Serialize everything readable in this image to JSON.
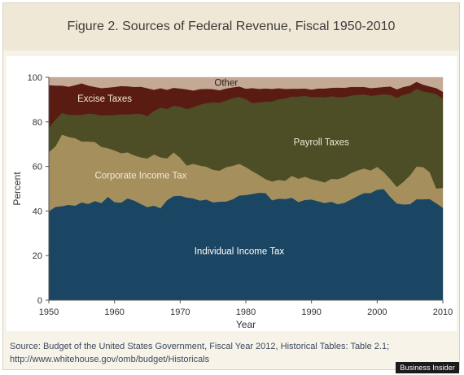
{
  "title": "Figure 2. Sources of Federal Revenue, Fiscal 1950-2010",
  "source_lines": [
    "Source: Budget of the United States Government, Fiscal Year 2012, Historical Tables: Table 2.1;",
    "http://www.whitehouse.gov/omb/budget/Historicals"
  ],
  "watermark": "Business Insider",
  "chart_data": {
    "type": "area",
    "stacked": true,
    "xlabel": "Year",
    "ylabel": "Percent",
    "xlim": [
      1950,
      2010
    ],
    "ylim": [
      0,
      100
    ],
    "xticks": [
      1950,
      1960,
      1970,
      1980,
      1990,
      2000,
      2010
    ],
    "yticks": [
      0,
      20,
      40,
      60,
      80,
      100
    ],
    "grid": "horizontal",
    "legend": "inline labels",
    "x": [
      1950,
      1951,
      1952,
      1953,
      1954,
      1955,
      1956,
      1957,
      1958,
      1959,
      1960,
      1961,
      1962,
      1963,
      1964,
      1965,
      1966,
      1967,
      1968,
      1969,
      1970,
      1971,
      1972,
      1973,
      1974,
      1975,
      1976,
      1977,
      1978,
      1979,
      1980,
      1981,
      1982,
      1983,
      1984,
      1985,
      1986,
      1987,
      1988,
      1989,
      1990,
      1991,
      1992,
      1993,
      1994,
      1995,
      1996,
      1997,
      1998,
      1999,
      2000,
      2001,
      2002,
      2003,
      2004,
      2005,
      2006,
      2007,
      2008,
      2009,
      2010
    ],
    "series": [
      {
        "name": "Individual Income Tax",
        "color": "#1b4663",
        "values": [
          39.9,
          41.9,
          42.2,
          42.8,
          42.4,
          43.9,
          43.2,
          44.5,
          43.6,
          46.4,
          44.0,
          43.8,
          45.7,
          44.7,
          43.2,
          41.8,
          42.4,
          41.3,
          44.9,
          46.7,
          46.9,
          46.1,
          45.7,
          44.7,
          45.2,
          43.9,
          44.2,
          44.3,
          45.3,
          47.0,
          47.2,
          47.7,
          48.2,
          48.1,
          44.8,
          45.6,
          45.4,
          46.0,
          44.1,
          45.0,
          45.2,
          44.4,
          43.6,
          44.2,
          43.1,
          43.7,
          45.2,
          46.7,
          48.1,
          48.1,
          49.6,
          49.9,
          46.3,
          43.4,
          43.0,
          43.1,
          45.3,
          45.3,
          45.4,
          43.5,
          41.5
        ]
      },
      {
        "name": "Corporate Income Tax",
        "color": "#a58f5c",
        "values": [
          26.5,
          27.1,
          32.1,
          30.5,
          30.3,
          27.3,
          28.0,
          26.5,
          25.2,
          21.8,
          23.2,
          22.2,
          20.6,
          20.3,
          20.9,
          21.8,
          23.0,
          22.8,
          18.7,
          19.6,
          17.0,
          14.3,
          15.5,
          15.7,
          14.7,
          14.6,
          13.9,
          15.4,
          15.0,
          14.2,
          12.5,
          10.2,
          8.0,
          6.2,
          8.5,
          8.4,
          8.2,
          9.8,
          10.4,
          10.4,
          9.1,
          9.3,
          9.2,
          10.2,
          11.2,
          11.6,
          11.8,
          11.5,
          11.0,
          10.1,
          10.2,
          7.6,
          8.0,
          7.4,
          10.1,
          12.9,
          14.7,
          14.4,
          12.1,
          6.6,
          8.9
        ]
      },
      {
        "name": "Payroll Taxes",
        "color": "#4d4d26",
        "values": [
          11.0,
          12.0,
          9.7,
          9.9,
          10.4,
          12.0,
          12.5,
          12.5,
          14.1,
          14.8,
          15.9,
          17.4,
          17.1,
          18.6,
          19.5,
          19.0,
          19.5,
          22.3,
          22.2,
          20.9,
          23.0,
          25.3,
          25.4,
          27.3,
          28.5,
          30.3,
          30.5,
          29.9,
          30.3,
          30.0,
          30.5,
          30.5,
          32.6,
          34.8,
          35.9,
          36.1,
          36.9,
          35.5,
          36.8,
          36.3,
          36.8,
          37.5,
          38.2,
          37.1,
          36.8,
          35.8,
          34.8,
          33.9,
          33.2,
          33.5,
          32.2,
          34.9,
          37.8,
          40.0,
          39.0,
          36.9,
          34.8,
          33.9,
          35.7,
          42.3,
          40.0
        ]
      },
      {
        "name": "Excise Taxes",
        "color": "#5a1b12",
        "values": [
          19.1,
          15.3,
          12.3,
          12.6,
          13.4,
          14.1,
          12.6,
          12.2,
          12.3,
          12.4,
          12.6,
          12.7,
          12.6,
          12.1,
          12.2,
          12.5,
          9.5,
          8.7,
          8.6,
          8.1,
          8.1,
          8.9,
          7.5,
          7.0,
          6.4,
          5.9,
          5.6,
          5.4,
          4.9,
          4.7,
          4.7,
          6.8,
          6.0,
          5.9,
          5.6,
          5.0,
          4.3,
          3.6,
          3.6,
          3.3,
          3.4,
          3.8,
          4.0,
          3.8,
          4.3,
          4.2,
          3.9,
          3.6,
          3.4,
          3.5,
          3.4,
          3.3,
          3.8,
          3.8,
          3.6,
          3.4,
          3.2,
          3.1,
          2.7,
          2.8,
          3.1
        ]
      },
      {
        "name": "Other",
        "color": "#c4aa96",
        "values": [
          3.5,
          3.7,
          3.7,
          4.2,
          3.5,
          2.7,
          3.7,
          4.3,
          4.8,
          4.6,
          4.3,
          3.9,
          4.0,
          4.3,
          4.2,
          4.9,
          5.6,
          4.9,
          5.6,
          4.7,
          5.0,
          5.4,
          5.9,
          5.3,
          5.2,
          5.3,
          5.8,
          5.0,
          4.5,
          4.1,
          5.1,
          4.8,
          5.2,
          5.0,
          5.2,
          4.9,
          5.2,
          5.1,
          5.1,
          5.0,
          5.5,
          5.0,
          5.0,
          4.7,
          4.6,
          4.7,
          4.3,
          4.3,
          4.3,
          4.8,
          4.6,
          4.3,
          4.1,
          5.4,
          4.3,
          3.7,
          2.0,
          3.3,
          4.1,
          4.8,
          6.5
        ]
      }
    ],
    "labels": [
      {
        "text": "Individual Income Tax",
        "x": 1979,
        "y": 22,
        "color": "#ffffff"
      },
      {
        "text": "Corporate Income Tax",
        "x": 1964,
        "y": 56,
        "color": "#f1ead6"
      },
      {
        "text": "Payroll Taxes",
        "x": 1991.5,
        "y": 71,
        "color": "#f1ead6"
      },
      {
        "text": "Excise Taxes",
        "x": 1958.5,
        "y": 90.5,
        "color": "#f1ead6"
      },
      {
        "text": "Other",
        "x": 1977,
        "y": 97.6,
        "color": "#2a1a10"
      }
    ],
    "axis_color": "#555555",
    "text_color": "#333333"
  }
}
